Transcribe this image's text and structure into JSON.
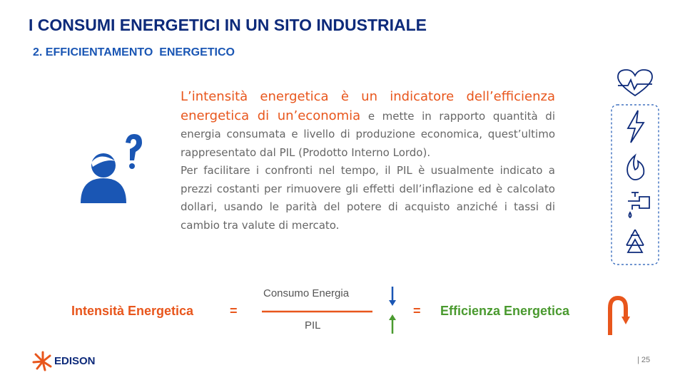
{
  "header": {
    "title": "I CONSUMI ENERGETICI IN UN SITO INDUSTRIALE",
    "subtitle": "2. EFFICIENTAMENTO  ENERGETICO"
  },
  "body": {
    "highlight": "L’intensità energetica è un indicatore dell’efficienza energetica di un’economia",
    "continuation": " e mette in rapporto quantità di energia consumata e livello di produzione economica, quest’ultimo rappresentato dal PIL (Prodotto Interno Lordo).",
    "second": "Per facilitare i confronti nel tempo, il PIL è usualmente indicato a prezzi costanti per rimuovere gli effetti dell’inflazione ed è calcolato dollari, usando le parità del potere di acquisto anziché i tassi di cambio tra valute di mercato."
  },
  "formula": {
    "left": "Intensità Energetica",
    "equals": [
      "=",
      "="
    ],
    "numerator": "Consumo Energia",
    "denominator": "PIL",
    "right": "Efficienza Energetica"
  },
  "footer": {
    "logo": "EDISON",
    "page": "| 25"
  }
}
